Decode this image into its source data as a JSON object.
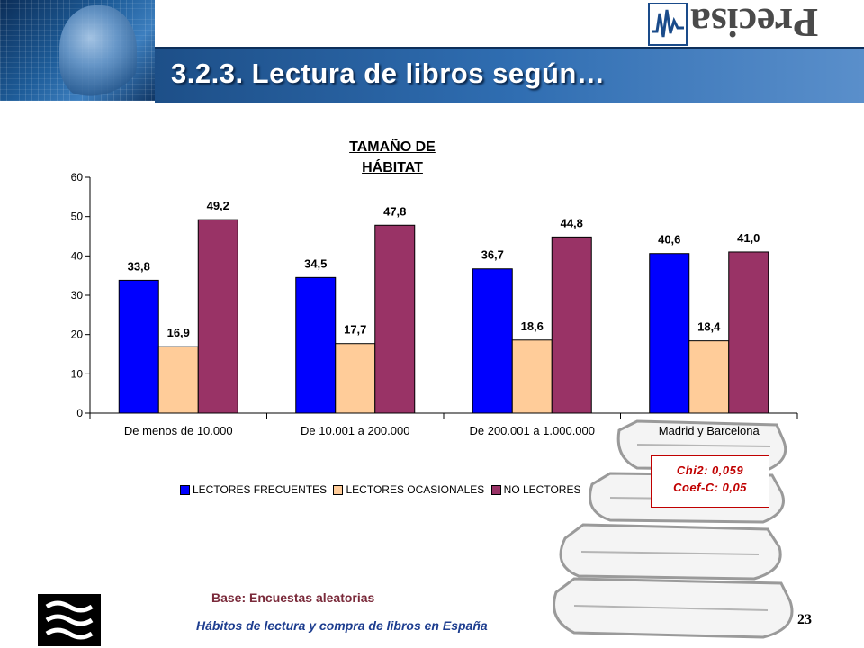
{
  "slide": {
    "title": "3.2.3. Lectura de libros según…",
    "logo_text": "Precisa",
    "base_text": "Base: Encuestas aleatorias",
    "footer_text": "Hábitos de lectura y compra de libros en España",
    "page_number": "23"
  },
  "stats": {
    "chi2": "Chi2: 0,059",
    "coef": "Coef-C: 0,05"
  },
  "chart_data": {
    "type": "bar",
    "title_line1": "TAMAÑO DE",
    "title_line2": "HÁBITAT",
    "categories": [
      "De menos de 10.000",
      "De 10.001 a 200.000",
      "De 200.001 a 1.000.000",
      "Madrid y Barcelona"
    ],
    "series": [
      {
        "name": "LECTORES FRECUENTES",
        "color": "#0000ff",
        "values": [
          33.8,
          34.5,
          36.7,
          40.6
        ],
        "labels": [
          "33,8",
          "34,5",
          "36,7",
          "40,6"
        ]
      },
      {
        "name": "LECTORES OCASIONALES",
        "color": "#ffcc99",
        "values": [
          16.9,
          17.7,
          18.6,
          18.4
        ],
        "labels": [
          "16,9",
          "17,7",
          "18,6",
          "18,4"
        ]
      },
      {
        "name": "NO LECTORES",
        "color": "#993366",
        "values": [
          49.2,
          47.8,
          44.8,
          41.0
        ],
        "labels": [
          "49,2",
          "47,8",
          "44,8",
          "41,0"
        ]
      }
    ],
    "ylim": [
      0,
      60
    ],
    "yticks": [
      "0",
      "10",
      "20",
      "30",
      "40",
      "50",
      "60"
    ],
    "legend_position": "bottom",
    "grid": false
  }
}
